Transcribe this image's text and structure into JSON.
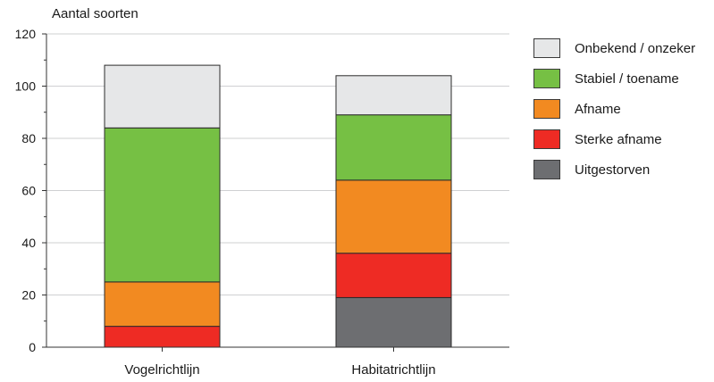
{
  "chart_data": {
    "type": "bar",
    "stacked": true,
    "ylabel": "Aantal soorten",
    "xlabel": "",
    "ylim": [
      0,
      120
    ],
    "yticks": [
      0,
      20,
      40,
      60,
      80,
      100,
      120
    ],
    "categories": [
      "Vogelrichtlijn",
      "Habitatrichtlijn"
    ],
    "series": [
      {
        "name": "Uitgestorven",
        "color": "#6d6e71",
        "values": [
          0,
          19
        ]
      },
      {
        "name": "Sterke afname",
        "color": "#ee2b24",
        "values": [
          8,
          17
        ]
      },
      {
        "name": "Afname",
        "color": "#f28a21",
        "values": [
          17,
          28
        ]
      },
      {
        "name": "Stabiel / toename",
        "color": "#76c044",
        "values": [
          59,
          25
        ]
      },
      {
        "name": "Onbekend / onzeker",
        "color": "#e6e7e8",
        "values": [
          24,
          15
        ]
      }
    ],
    "grid": true,
    "legend_position": "right"
  }
}
